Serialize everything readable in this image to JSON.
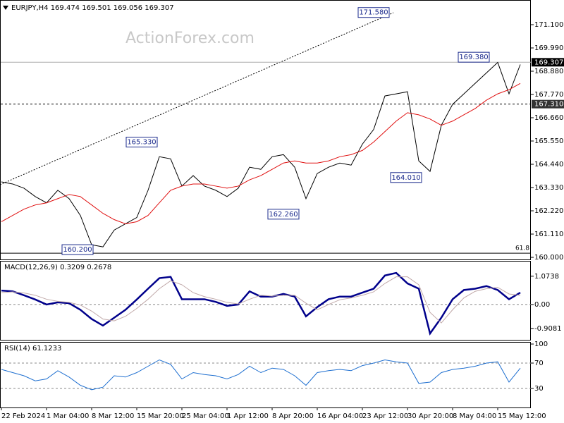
{
  "chart_data": [
    {
      "type": "line",
      "title": "EURJPY,H4  169.474 169.501 169.056 169.307",
      "watermark": "ActionForex.com",
      "categories": [
        "22 Feb 2024",
        null,
        null,
        null,
        "1 Mar 04:00",
        null,
        null,
        null,
        "8 Mar 12:00",
        null,
        null,
        null,
        "15 Mar 20:00",
        null,
        null,
        null,
        "25 Mar 04:00",
        null,
        null,
        null,
        "1 Apr 12:00",
        null,
        null,
        null,
        "8 Apr 20:00",
        null,
        null,
        null,
        "16 Apr 04:00",
        null,
        null,
        null,
        "23 Apr 12:00",
        null,
        null,
        null,
        "30 Apr 20:00",
        null,
        null,
        null,
        "8 May 04:00",
        null,
        null,
        null,
        "15 May 12:00",
        null,
        null
      ],
      "series": [
        {
          "name": "EURJPY",
          "color": "#000000",
          "values": [
            163.6,
            163.5,
            163.3,
            162.9,
            162.6,
            163.2,
            162.8,
            162.0,
            160.6,
            160.5,
            161.3,
            161.6,
            161.9,
            163.2,
            164.8,
            164.7,
            163.4,
            163.9,
            163.4,
            163.2,
            162.9,
            163.3,
            164.3,
            164.2,
            164.8,
            164.9,
            164.3,
            162.8,
            164.0,
            164.3,
            164.5,
            164.4,
            165.4,
            166.1,
            167.7,
            167.8,
            167.9,
            164.6,
            164.1,
            166.3,
            167.3,
            167.8,
            168.3,
            168.8,
            169.3,
            167.8,
            169.2
          ]
        },
        {
          "name": "MA",
          "color": "#e01010",
          "values": [
            161.7,
            162.0,
            162.3,
            162.5,
            162.6,
            162.8,
            163.0,
            162.9,
            162.5,
            162.1,
            161.8,
            161.6,
            161.7,
            162.0,
            162.6,
            163.2,
            163.4,
            163.5,
            163.5,
            163.4,
            163.3,
            163.4,
            163.7,
            163.9,
            164.2,
            164.5,
            164.6,
            164.5,
            164.5,
            164.6,
            164.8,
            164.9,
            165.1,
            165.5,
            166.0,
            166.5,
            166.9,
            166.8,
            166.6,
            166.3,
            166.5,
            166.8,
            167.1,
            167.5,
            167.8,
            168.0,
            168.3
          ]
        }
      ],
      "ylim": [
        159.9,
        172.21
      ],
      "yticks": [
        {
          "value": 160.0,
          "label": "160.000"
        },
        {
          "value": 161.11,
          "label": "161.110"
        },
        {
          "value": 162.22,
          "label": "162.220"
        },
        {
          "value": 163.33,
          "label": "163.330"
        },
        {
          "value": 164.44,
          "label": "164.440"
        },
        {
          "value": 165.55,
          "label": "165.550"
        },
        {
          "value": 166.66,
          "label": "166.660"
        },
        {
          "value": 167.77,
          "label": "167.770"
        },
        {
          "value": 168.88,
          "label": "168.880"
        },
        {
          "value": 169.99,
          "label": "169.990"
        },
        {
          "value": 171.1,
          "label": "171.100"
        }
      ],
      "annotations": [
        {
          "value": 171.58,
          "label": "171.580"
        },
        {
          "value": 169.38,
          "label": "169.380"
        },
        {
          "value": 165.33,
          "label": "165.330"
        },
        {
          "value": 164.01,
          "label": "164.010"
        },
        {
          "value": 162.26,
          "label": "162.260"
        },
        {
          "value": 160.2,
          "label": "160.200"
        }
      ],
      "levels": [
        {
          "value": 169.307,
          "label": "169.307"
        },
        {
          "value": 167.31,
          "label": "167.310"
        }
      ],
      "fib_level": {
        "value": 160.2,
        "label": "61.8"
      }
    },
    {
      "type": "line",
      "title": "MACD(12,26,9) 0.3209 0.2678",
      "series": [
        {
          "name": "MACD",
          "color": "#00008b",
          "values": [
            0.53,
            0.5,
            0.35,
            0.19,
            0.0,
            0.08,
            0.05,
            -0.2,
            -0.55,
            -0.8,
            -0.5,
            -0.2,
            0.19,
            0.6,
            1.0,
            1.05,
            0.2,
            0.2,
            0.2,
            0.1,
            -0.05,
            0.0,
            0.5,
            0.3,
            0.3,
            0.4,
            0.3,
            -0.45,
            -0.1,
            0.2,
            0.3,
            0.3,
            0.45,
            0.6,
            1.1,
            1.2,
            0.8,
            0.6,
            -1.1,
            -0.5,
            0.2,
            0.55,
            0.6,
            0.7,
            0.55,
            0.2,
            0.45
          ]
        },
        {
          "name": "Signal",
          "color": "#c0a8a8",
          "values": [
            0.45,
            0.48,
            0.44,
            0.35,
            0.2,
            0.12,
            0.08,
            -0.02,
            -0.25,
            -0.55,
            -0.62,
            -0.45,
            -0.15,
            0.2,
            0.6,
            0.9,
            0.75,
            0.45,
            0.3,
            0.2,
            0.08,
            0.02,
            0.2,
            0.35,
            0.32,
            0.35,
            0.35,
            0.05,
            -0.2,
            0.0,
            0.18,
            0.25,
            0.35,
            0.48,
            0.8,
            1.05,
            1.05,
            0.75,
            -0.3,
            -0.7,
            -0.2,
            0.25,
            0.5,
            0.6,
            0.65,
            0.4,
            0.35
          ]
        }
      ],
      "ylim": [
        -1.34,
        1.63
      ],
      "yticks": [
        -0.9081,
        {
          "value": 0,
          "label": "0.00"
        },
        1.0738
      ]
    },
    {
      "type": "line",
      "title": "RSI(14) 61.1233",
      "series": [
        {
          "name": "RSI",
          "color": "#1e6fd0",
          "values": [
            60,
            55,
            50,
            42,
            45,
            58,
            48,
            35,
            28,
            32,
            50,
            48,
            55,
            65,
            75,
            68,
            45,
            55,
            52,
            50,
            45,
            52,
            65,
            55,
            62,
            60,
            50,
            35,
            55,
            58,
            60,
            58,
            66,
            70,
            75,
            72,
            70,
            38,
            40,
            55,
            60,
            62,
            65,
            70,
            72,
            40,
            62
          ]
        }
      ],
      "ylim": [
        0,
        100
      ],
      "yticks": [
        30,
        70,
        100
      ]
    }
  ]
}
